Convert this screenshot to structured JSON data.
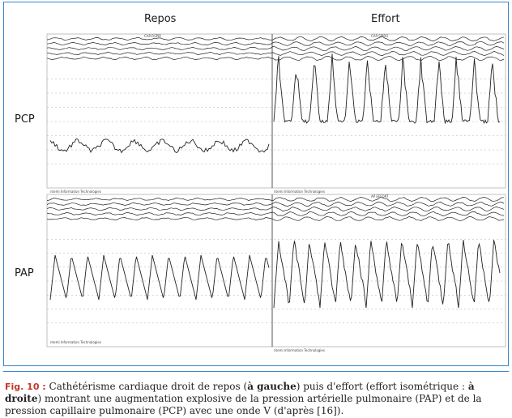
{
  "figure": {
    "header_left": "Repos",
    "header_right": "Effort",
    "trace_label_top": "PCP",
    "trace_label_bottom": "PAP",
    "monitor_footer": "ntemi Information Technologies",
    "channel_tags": {
      "top_left": "CAP-RSPIR",
      "top_right": "CAP-SPIRO",
      "bottom_right": "AP EFFORT"
    }
  },
  "caption": {
    "figure_number": "Fig. 10 :",
    "part1": " Cathétérisme cardiaque droit de repos (",
    "left_bold": "à gauche",
    "part2": ") puis d'effort (effort isométrique : ",
    "right_bold": "à droite",
    "part3": ") montrant une augmentation explosive de la pression artérielle pulmonaire (PAP) et de la pression capillaire pulmonaire (PCP) avec une onde V (d'après [16])."
  },
  "colors": {
    "frame": "#3a86c8",
    "trace": "#222222",
    "grid": "#9a9a9a",
    "figure_label": "#c0392b"
  }
}
